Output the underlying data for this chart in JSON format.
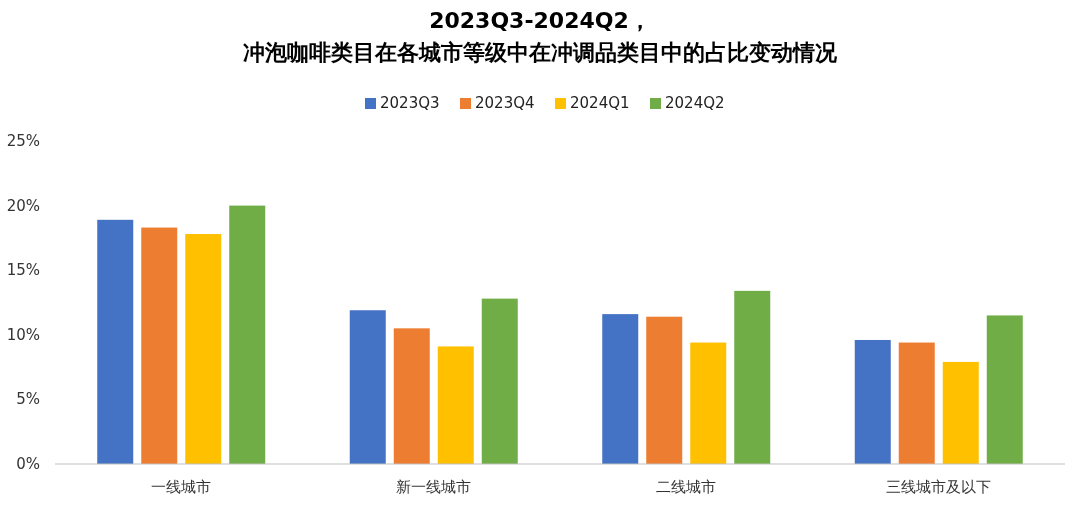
{
  "chart_data": {
    "type": "bar",
    "title": "2023Q3-2024Q2，",
    "subtitle": "冲泡咖啡类目在各城市等级中在冲调品类目中的占比变动情况",
    "categories": [
      "一线城市",
      "新一线城市",
      "二线城市",
      "三线城市及以下"
    ],
    "series": [
      {
        "name": "2023Q3",
        "color": "#4472c4",
        "values": [
          18.9,
          11.9,
          11.6,
          9.6
        ]
      },
      {
        "name": "2023Q4",
        "color": "#ed7d31",
        "values": [
          18.3,
          10.5,
          11.4,
          9.4
        ]
      },
      {
        "name": "2024Q1",
        "color": "#ffc000",
        "values": [
          17.8,
          9.1,
          9.4,
          7.9
        ]
      },
      {
        "name": "2024Q2",
        "color": "#70ad47",
        "values": [
          20.0,
          12.8,
          13.4,
          11.5
        ]
      }
    ],
    "ylim": [
      0,
      25
    ],
    "yticks": [
      {
        "value": 0,
        "label": "0%"
      },
      {
        "value": 5,
        "label": "5%"
      },
      {
        "value": 10,
        "label": "10%"
      },
      {
        "value": 15,
        "label": "15%"
      },
      {
        "value": 20,
        "label": "20%"
      },
      {
        "value": 25,
        "label": "25%"
      }
    ],
    "grid": false,
    "legend": "top"
  }
}
